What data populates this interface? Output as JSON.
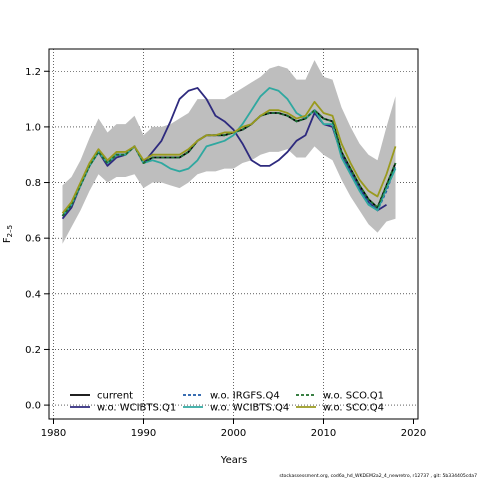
{
  "chart_data": {
    "type": "line",
    "xlabel": "Years",
    "ylabel": "F",
    "ylabel_sub": "2–5",
    "xlim": [
      1979.5,
      2020.5
    ],
    "ylim": [
      -0.05,
      1.28
    ],
    "xticks": [
      1980,
      1990,
      2000,
      2010,
      2020
    ],
    "yticks": [
      0.0,
      0.2,
      0.4,
      0.6,
      0.8,
      1.0,
      1.2
    ],
    "xtick_labels": [
      "1980",
      "1990",
      "2000",
      "2010",
      "2020"
    ],
    "ytick_labels": [
      "0.0",
      "0.2",
      "0.4",
      "0.6",
      "0.8",
      "1.0",
      "1.2"
    ],
    "grid": true,
    "legend_position": "bottom-left",
    "x": [
      1981,
      1982,
      1983,
      1984,
      1985,
      1986,
      1987,
      1988,
      1989,
      1990,
      1991,
      1992,
      1993,
      1994,
      1995,
      1996,
      1997,
      1998,
      1999,
      2000,
      2001,
      2002,
      2003,
      2004,
      2005,
      2006,
      2007,
      2008,
      2009,
      2010,
      2011,
      2012,
      2013,
      2014,
      2015,
      2016,
      2017,
      2018
    ],
    "band": {
      "lower": [
        0.58,
        0.64,
        0.7,
        0.77,
        0.83,
        0.8,
        0.82,
        0.82,
        0.83,
        0.78,
        0.8,
        0.8,
        0.79,
        0.78,
        0.8,
        0.83,
        0.84,
        0.84,
        0.85,
        0.85,
        0.87,
        0.88,
        0.9,
        0.91,
        0.91,
        0.92,
        0.89,
        0.89,
        0.93,
        0.9,
        0.88,
        0.81,
        0.75,
        0.7,
        0.65,
        0.62,
        0.66,
        0.67
      ],
      "upper": [
        0.79,
        0.82,
        0.88,
        0.96,
        1.03,
        0.98,
        1.01,
        1.01,
        1.04,
        0.97,
        1.0,
        1.0,
        1.01,
        1.03,
        1.05,
        1.1,
        1.1,
        1.1,
        1.1,
        1.12,
        1.14,
        1.16,
        1.18,
        1.21,
        1.22,
        1.21,
        1.17,
        1.17,
        1.24,
        1.18,
        1.17,
        1.07,
        1.0,
        0.94,
        0.9,
        0.88,
        1.0,
        1.11
      ],
      "color": "#bebebe"
    },
    "series": [
      {
        "name": "current",
        "color": "#000000",
        "dash": "solid",
        "values": [
          0.68,
          0.72,
          0.79,
          0.86,
          0.91,
          0.87,
          0.9,
          0.9,
          0.93,
          0.87,
          0.89,
          0.89,
          0.89,
          0.89,
          0.91,
          0.95,
          0.97,
          0.97,
          0.97,
          0.98,
          0.99,
          1.01,
          1.04,
          1.05,
          1.05,
          1.04,
          1.02,
          1.03,
          1.06,
          1.03,
          1.02,
          0.91,
          0.85,
          0.79,
          0.74,
          0.71,
          0.79,
          0.87
        ]
      },
      {
        "name": "w.o. WCIBTS.Q1",
        "color": "#2e2a7e",
        "dash": "solid",
        "values": [
          0.67,
          0.71,
          0.79,
          0.86,
          0.91,
          0.86,
          0.89,
          0.9,
          0.93,
          0.87,
          0.91,
          0.95,
          1.02,
          1.1,
          1.13,
          1.14,
          1.1,
          1.04,
          1.02,
          0.99,
          0.94,
          0.88,
          0.86,
          0.86,
          0.88,
          0.91,
          0.95,
          0.97,
          1.05,
          1.01,
          1.0,
          0.9,
          0.84,
          0.78,
          0.73,
          0.7,
          0.72,
          null
        ]
      },
      {
        "name": "w.o. IRGFS.Q4",
        "color": "#1f5aa8",
        "dash": "dashed",
        "values": [
          0.68,
          0.72,
          0.79,
          0.86,
          0.91,
          0.87,
          0.9,
          0.9,
          0.93,
          0.87,
          0.89,
          0.89,
          0.89,
          0.89,
          0.91,
          0.95,
          0.97,
          0.97,
          0.97,
          0.98,
          0.99,
          1.01,
          1.04,
          1.05,
          1.05,
          1.04,
          1.02,
          1.03,
          1.06,
          1.03,
          1.02,
          0.91,
          0.84,
          0.78,
          0.73,
          0.7,
          0.77,
          0.86
        ]
      },
      {
        "name": "w.o. WCIBTS.Q4",
        "color": "#2fa8a0",
        "dash": "solid",
        "values": [
          0.68,
          0.72,
          0.79,
          0.86,
          0.91,
          0.87,
          0.9,
          0.9,
          0.93,
          0.87,
          0.88,
          0.87,
          0.85,
          0.84,
          0.85,
          0.88,
          0.93,
          0.94,
          0.95,
          0.97,
          1.01,
          1.06,
          1.11,
          1.14,
          1.13,
          1.1,
          1.05,
          1.03,
          1.06,
          1.01,
          1.01,
          0.89,
          0.83,
          0.77,
          0.72,
          0.7,
          0.78,
          0.85
        ]
      },
      {
        "name": "w.o. SCO.Q1",
        "color": "#1e6e2a",
        "dash": "dashed",
        "values": [
          0.68,
          0.72,
          0.79,
          0.86,
          0.91,
          0.87,
          0.9,
          0.9,
          0.93,
          0.87,
          0.89,
          0.89,
          0.89,
          0.89,
          0.91,
          0.95,
          0.97,
          0.97,
          0.97,
          0.98,
          0.99,
          1.01,
          1.04,
          1.05,
          1.05,
          1.04,
          1.02,
          1.03,
          1.06,
          1.03,
          1.02,
          0.91,
          0.85,
          0.79,
          0.74,
          0.71,
          0.79,
          0.87
        ]
      },
      {
        "name": "w.o. SCO.Q4",
        "color": "#9a9a1e",
        "dash": "solid",
        "values": [
          0.69,
          0.73,
          0.8,
          0.87,
          0.92,
          0.88,
          0.91,
          0.91,
          0.93,
          0.88,
          0.9,
          0.9,
          0.9,
          0.9,
          0.92,
          0.95,
          0.97,
          0.97,
          0.98,
          0.98,
          1.0,
          1.01,
          1.04,
          1.06,
          1.06,
          1.05,
          1.03,
          1.04,
          1.09,
          1.05,
          1.04,
          0.94,
          0.87,
          0.81,
          0.77,
          0.75,
          0.83,
          0.93
        ]
      }
    ]
  },
  "footer": "stockassessment.org, cod6a_hd_WKDEM2a2_4_newretro, r12737 , git: 5b334405cda7"
}
